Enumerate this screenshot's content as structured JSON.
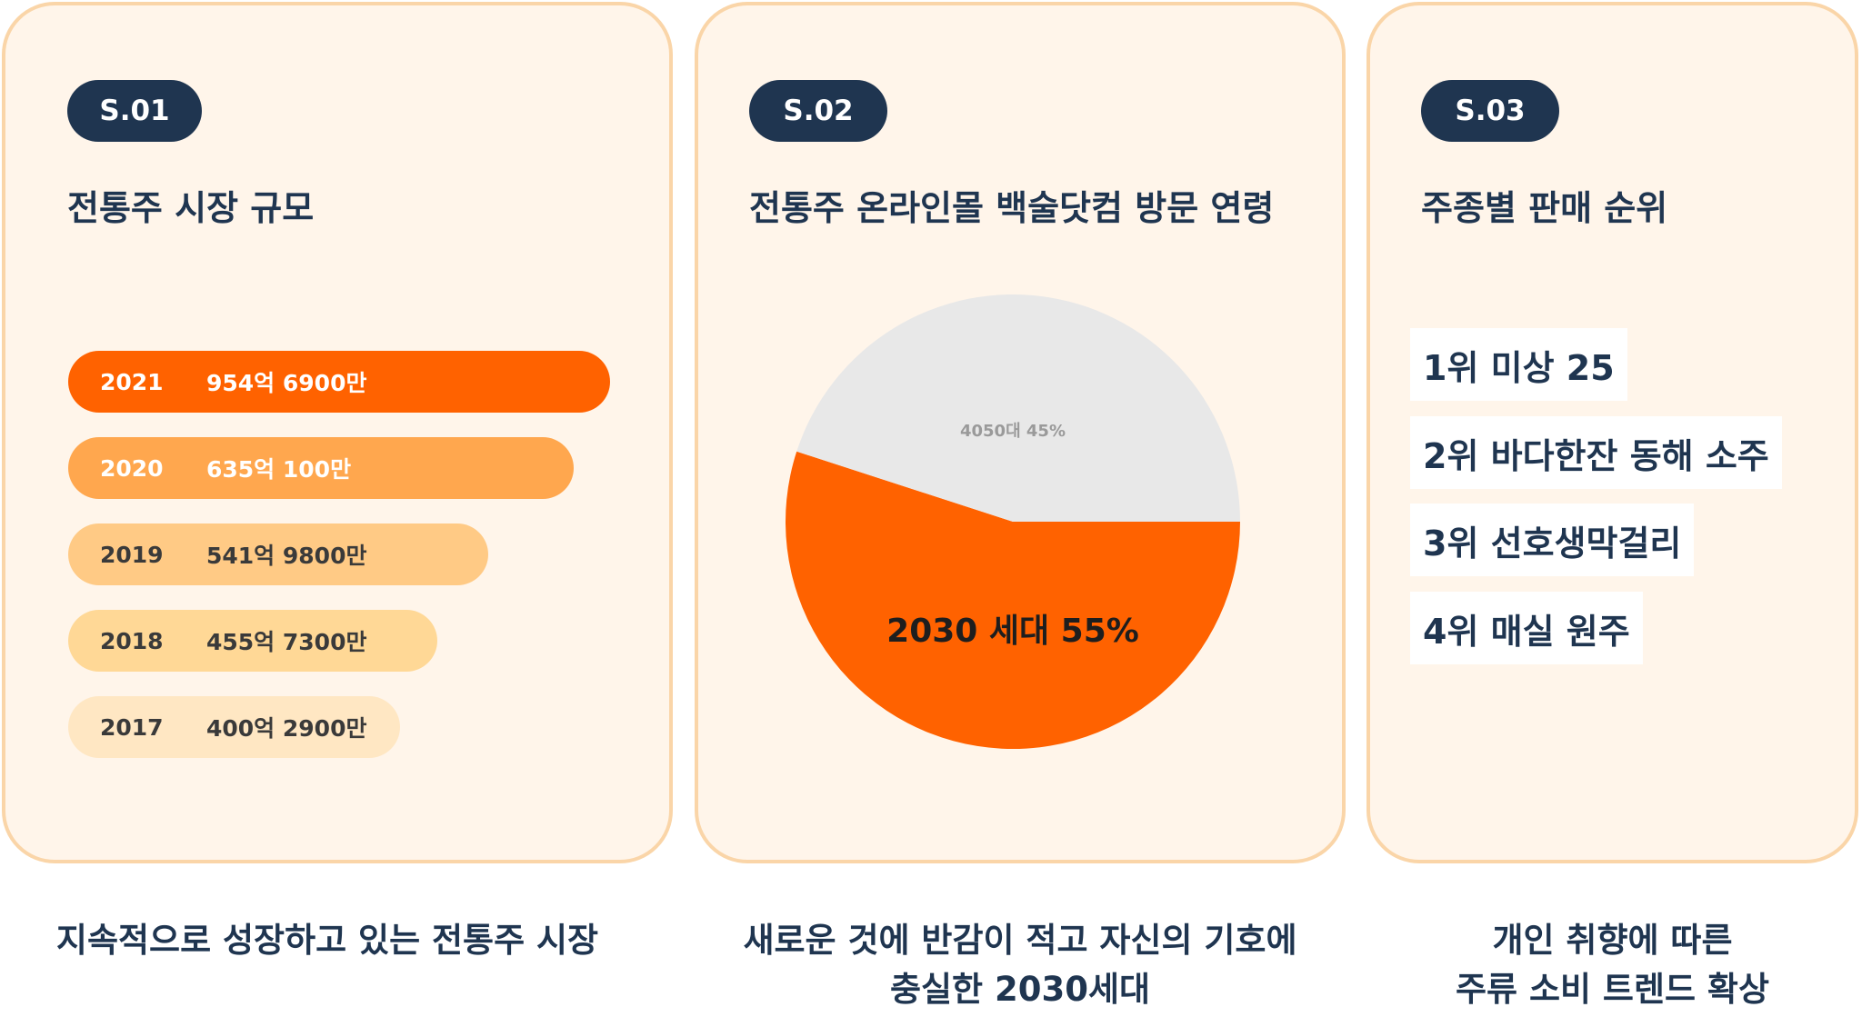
{
  "panels": [
    {
      "badge": "S.01",
      "title": "전통주 시장 규모",
      "caption_line1": "지속적으로 성장하고 있는 전통주 시장",
      "bars": [
        {
          "year": "2021",
          "value": "954억 6900만",
          "amount": 954.69,
          "color": "#ff6200",
          "text_color": "#ffffff"
        },
        {
          "year": "2020",
          "value": "635억 100만",
          "amount": 635.01,
          "color": "#ffa74e",
          "text_color": "#ffffff"
        },
        {
          "year": "2019",
          "value": "541억 9800만",
          "amount": 541.98,
          "color": "#ffca85",
          "text_color": "#3a3a3a"
        },
        {
          "year": "2018",
          "value": "455억 7300만",
          "amount": 455.73,
          "color": "#ffd896",
          "text_color": "#3a3a3a"
        },
        {
          "year": "2017",
          "value": "400억 2900만",
          "amount": 400.29,
          "color": "#ffe7c3",
          "text_color": "#3a3a3a"
        }
      ]
    },
    {
      "badge": "S.02",
      "title": "전통주 온라인몰 백술닷컴 방문 연령",
      "caption_line1": "새로운 것에 반감이 적고 자신의 기호에",
      "caption_line2": "충실한 2030세대"
    },
    {
      "badge": "S.03",
      "title": "주종별 판매 순위",
      "caption_line1": "개인 취향에 따른",
      "caption_line2": "주류 소비 트렌드 확상",
      "ranking": [
        "1위 미상 25",
        "2위 바다한잔 동해 소주",
        "3위 선호생막걸리",
        "4위 매실 원주"
      ]
    }
  ],
  "chart_data": {
    "type": "pie",
    "slices": [
      {
        "label": "2030 세대 55%",
        "value": 55,
        "color": "#ff6200"
      },
      {
        "label": "4050대 45%",
        "value": 45,
        "color": "#e8e8e8"
      }
    ]
  }
}
